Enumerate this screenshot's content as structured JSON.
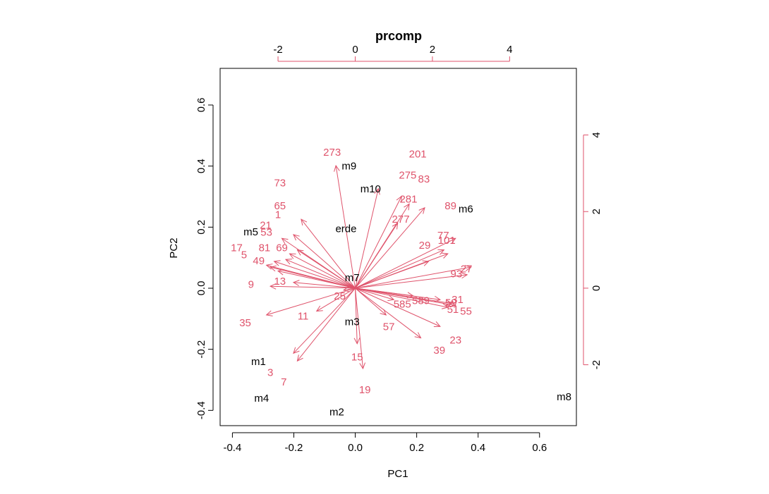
{
  "chart_data": {
    "type": "biplot",
    "title": "prcomp",
    "xlabel": "PC1",
    "ylabel": "PC2",
    "xlim": [
      -0.44,
      0.72
    ],
    "ylim": [
      -0.45,
      0.72
    ],
    "bottom_ticks": [
      -0.4,
      -0.2,
      0.0,
      0.2,
      0.4,
      0.6
    ],
    "bottom_tick_labels": [
      "-0.4",
      "-0.2",
      "0.0",
      "0.2",
      "0.4",
      "0.6"
    ],
    "left_ticks": [
      -0.4,
      -0.2,
      0.0,
      0.2,
      0.4,
      0.6
    ],
    "left_tick_labels": [
      "-0.4",
      "-0.2",
      "0.0",
      "0.2",
      "0.4",
      "0.6"
    ],
    "secondary_xlim": [
      -3.5,
      5.73
    ],
    "secondary_ylim": [
      -3.59,
      5.74
    ],
    "top_ticks": [
      -2,
      0,
      2,
      4
    ],
    "top_tick_labels": [
      "-2",
      "0",
      "2",
      "4"
    ],
    "right_ticks": [
      -2,
      0,
      2,
      4
    ],
    "right_tick_labels": [
      "-2",
      "0",
      "2",
      "4"
    ],
    "point_color": "#000000",
    "arrow_color": "#DF536B",
    "points": [
      {
        "label": "m9",
        "x": -0.02,
        "y": 0.4
      },
      {
        "label": "m10",
        "x": 0.05,
        "y": 0.325
      },
      {
        "label": "erde",
        "x": -0.03,
        "y": 0.195
      },
      {
        "label": "m6",
        "x": 0.36,
        "y": 0.26
      },
      {
        "label": "m5",
        "x": -0.34,
        "y": 0.185
      },
      {
        "label": "m7",
        "x": -0.01,
        "y": 0.035
      },
      {
        "label": "m3",
        "x": -0.01,
        "y": -0.11
      },
      {
        "label": "m1",
        "x": -0.315,
        "y": -0.24
      },
      {
        "label": "m4",
        "x": -0.305,
        "y": -0.36
      },
      {
        "label": "m2",
        "x": -0.06,
        "y": -0.405
      },
      {
        "label": "m8",
        "x": 0.68,
        "y": -0.355
      }
    ],
    "loadings": [
      {
        "label": "273",
        "x": -0.5,
        "y": 3.2,
        "lx": -0.6,
        "ly": 3.55
      },
      {
        "label": "201",
        "x": 0.6,
        "y": 2.6,
        "lx": 1.62,
        "ly": 3.5
      },
      {
        "label": "275",
        "x": 1.2,
        "y": 2.4,
        "lx": 1.36,
        "ly": 2.95
      },
      {
        "label": "83",
        "x": 1.8,
        "y": 2.1,
        "lx": 1.78,
        "ly": 2.85
      },
      {
        "label": "281",
        "x": 1.4,
        "y": 2.2,
        "lx": 1.38,
        "ly": 2.33
      },
      {
        "label": "277",
        "x": 1.1,
        "y": 1.7,
        "lx": 1.18,
        "ly": 1.8
      },
      {
        "label": "89",
        "x": 2.6,
        "y": 1.3,
        "lx": 2.47,
        "ly": 2.15
      },
      {
        "label": "77",
        "x": 2.3,
        "y": 1.0,
        "lx": 2.28,
        "ly": 1.38
      },
      {
        "label": "101",
        "x": 2.4,
        "y": 0.9,
        "lx": 2.37,
        "ly": 1.25
      },
      {
        "label": "29",
        "x": 1.9,
        "y": 0.7,
        "lx": 1.8,
        "ly": 1.12
      },
      {
        "label": "93",
        "x": 2.9,
        "y": 0.35,
        "lx": 2.62,
        "ly": 0.38
      },
      {
        "label": "27",
        "x": 3.0,
        "y": 0.55,
        "lx": 2.88,
        "ly": 0.5
      },
      {
        "label": "73",
        "x": -1.4,
        "y": 1.8,
        "lx": -1.95,
        "ly": 2.75
      },
      {
        "label": "65",
        "x": -1.6,
        "y": 1.4,
        "lx": -1.95,
        "ly": 2.15
      },
      {
        "label": "21",
        "x": -1.5,
        "y": 1.0,
        "lx": -2.32,
        "ly": 1.65
      },
      {
        "label": "1",
        "x": -1.9,
        "y": 1.3,
        "lx": -2.0,
        "ly": 1.92
      },
      {
        "label": "53",
        "x": -1.7,
        "y": 0.9,
        "lx": -2.3,
        "ly": 1.46
      },
      {
        "label": "69",
        "x": -1.8,
        "y": 0.75,
        "lx": -1.9,
        "ly": 1.06
      },
      {
        "label": "81",
        "x": -2.1,
        "y": 0.7,
        "lx": -2.35,
        "ly": 1.06
      },
      {
        "label": "17",
        "x": -2.2,
        "y": 0.55,
        "lx": -3.07,
        "ly": 1.06
      },
      {
        "label": "5",
        "x": -2.3,
        "y": 0.6,
        "lx": -2.88,
        "ly": 0.87
      },
      {
        "label": "49",
        "x": -2.0,
        "y": 0.45,
        "lx": -2.5,
        "ly": 0.72
      },
      {
        "label": "9",
        "x": -2.2,
        "y": 0.05,
        "lx": -2.7,
        "ly": 0.1
      },
      {
        "label": "13",
        "x": -1.6,
        "y": 0.15,
        "lx": -1.95,
        "ly": 0.18
      },
      {
        "label": "23",
        "x": 2.2,
        "y": -1.0,
        "lx": 2.6,
        "ly": -1.35
      },
      {
        "label": "39",
        "x": 1.7,
        "y": -1.3,
        "lx": 2.18,
        "ly": -1.62
      },
      {
        "label": "31",
        "x": 2.5,
        "y": -0.4,
        "lx": 2.65,
        "ly": -0.3
      },
      {
        "label": "59",
        "x": 2.2,
        "y": -0.3,
        "lx": 2.48,
        "ly": -0.38
      },
      {
        "label": "51",
        "x": 2.4,
        "y": -0.5,
        "lx": 2.53,
        "ly": -0.55
      },
      {
        "label": "55",
        "x": 2.6,
        "y": -0.45,
        "lx": 2.87,
        "ly": -0.6
      },
      {
        "label": "589",
        "x": 1.5,
        "y": -0.2,
        "lx": 1.7,
        "ly": -0.32
      },
      {
        "label": "585",
        "x": 1.0,
        "y": -0.3,
        "lx": 1.22,
        "ly": -0.42
      },
      {
        "label": "57",
        "x": 0.8,
        "y": -0.7,
        "lx": 0.87,
        "ly": -1.0
      },
      {
        "label": "25",
        "x": -0.3,
        "y": -0.05,
        "lx": -0.4,
        "ly": -0.2
      },
      {
        "label": "11",
        "x": -1.0,
        "y": -0.6,
        "lx": -1.35,
        "ly": -0.73
      },
      {
        "label": "35",
        "x": -2.3,
        "y": -0.7,
        "lx": -2.85,
        "ly": -0.9
      },
      {
        "label": "15",
        "x": 0.05,
        "y": -1.45,
        "lx": 0.05,
        "ly": -1.8
      },
      {
        "label": "19",
        "x": 0.2,
        "y": -2.1,
        "lx": 0.25,
        "ly": -2.65
      },
      {
        "label": "3",
        "x": -1.6,
        "y": -1.7,
        "lx": -2.2,
        "ly": -2.2
      },
      {
        "label": "7",
        "x": -1.5,
        "y": -1.9,
        "lx": -1.85,
        "ly": -2.45
      }
    ]
  }
}
